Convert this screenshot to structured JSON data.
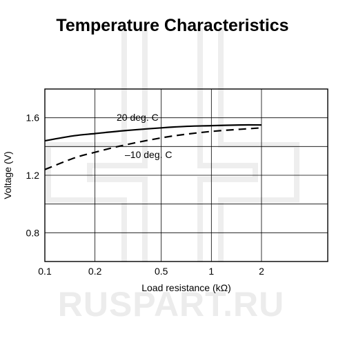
{
  "watermark": {
    "text": "RUSPART.RU",
    "color": "#ececec"
  },
  "chart_data": {
    "type": "line",
    "title": "Temperature Characteristics",
    "xlabel": "Load resistance (kΩ)",
    "ylabel": "Voltage (V)",
    "xscale": "log",
    "xlim": [
      0.1,
      5
    ],
    "ylim": [
      0.6,
      1.8
    ],
    "x_ticks": [
      0.1,
      0.2,
      0.5,
      1,
      2
    ],
    "x_tick_labels": [
      "0.1",
      "0.2",
      "0.5",
      "1",
      "2"
    ],
    "x_grid": [
      0.1,
      0.2,
      0.5,
      1,
      2
    ],
    "y_ticks": [
      0.8,
      1.2,
      1.6
    ],
    "y_tick_labels": [
      "0.8",
      "1.2",
      "1.6"
    ],
    "y_grid": [
      0.6,
      0.8,
      1.0,
      1.2,
      1.4,
      1.6,
      1.8
    ],
    "grid": true,
    "series": [
      {
        "name": "20 deg. C",
        "style": "solid",
        "color": "#000000",
        "x": [
          0.1,
          0.15,
          0.2,
          0.3,
          0.5,
          0.7,
          1,
          1.5,
          2
        ],
        "y": [
          1.44,
          1.475,
          1.49,
          1.51,
          1.53,
          1.54,
          1.545,
          1.55,
          1.55
        ]
      },
      {
        "name": "–10 deg. C",
        "style": "dashed",
        "color": "#000000",
        "x": [
          0.1,
          0.15,
          0.2,
          0.3,
          0.5,
          0.7,
          1,
          1.5,
          2
        ],
        "y": [
          1.24,
          1.32,
          1.36,
          1.41,
          1.46,
          1.485,
          1.505,
          1.52,
          1.53
        ]
      }
    ]
  }
}
